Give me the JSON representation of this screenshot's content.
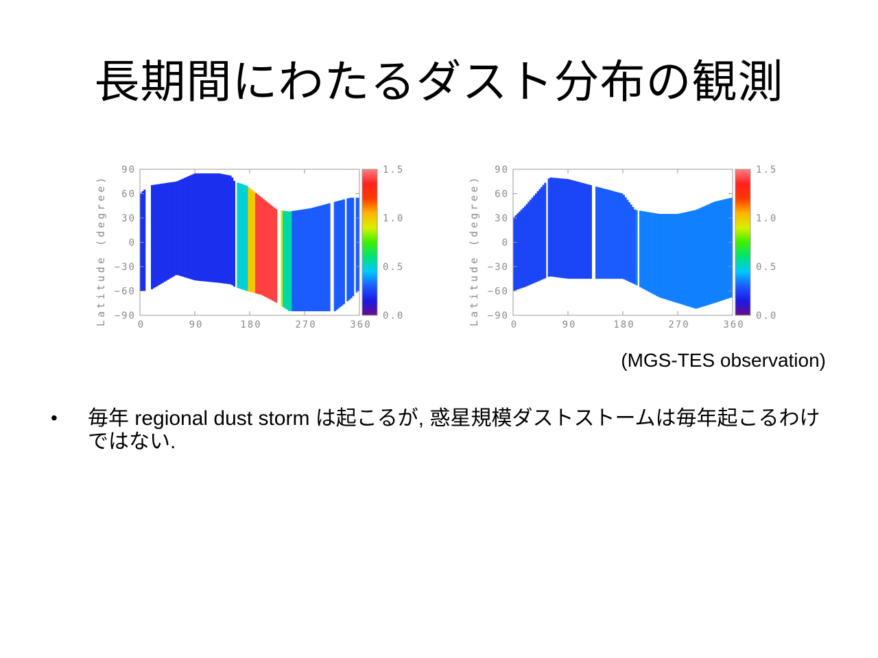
{
  "title": "長期間にわたるダスト分布の観測",
  "caption": "(MGS-TES observation)",
  "bullets": [
    {
      "mark": "•",
      "text": "毎年 regional dust storm は起こるが, 惑星規模ダストストームは毎年起こるわけではない."
    }
  ],
  "colors": {
    "colorbar": [
      "#6a0a8a",
      "#1a1ae6",
      "#1a5cff",
      "#00c8ff",
      "#00e27a",
      "#3cf000",
      "#d8f000",
      "#ffb400",
      "#ff3a00",
      "#ff2020",
      "#ff8080"
    ],
    "axis": "#9a9a9a"
  },
  "chart_data": [
    {
      "type": "heatmap",
      "title": "",
      "xlabel": "",
      "ylabel": "Latitude (degree)",
      "xlim": [
        0,
        360
      ],
      "ylim": [
        -90,
        90
      ],
      "xticks": [
        "0",
        "90",
        "180",
        "270",
        "360"
      ],
      "yticks": [
        "90",
        "60",
        "30",
        "0",
        "−30",
        "−60",
        "−90"
      ],
      "colorbar": {
        "range": [
          0.0,
          1.5
        ],
        "ticks": [
          "1.5",
          "1.0",
          "0.5",
          "0.0"
        ]
      },
      "coverage": [
        [
          0,
          -60,
          60
        ],
        [
          15,
          -60,
          70
        ],
        [
          60,
          -40,
          75
        ],
        [
          90,
          -47,
          85
        ],
        [
          130,
          -50,
          85
        ],
        [
          150,
          -52,
          82
        ],
        [
          155,
          -55,
          75
        ],
        [
          175,
          -60,
          70
        ],
        [
          200,
          -65,
          55
        ],
        [
          225,
          -75,
          40
        ],
        [
          245,
          -85,
          38
        ],
        [
          280,
          -85,
          42
        ],
        [
          320,
          -85,
          50
        ],
        [
          345,
          -70,
          55
        ],
        [
          358,
          -60,
          55
        ]
      ],
      "bands": [
        [
          0,
          160,
          0.2
        ],
        [
          160,
          178,
          0.5
        ],
        [
          178,
          190,
          1.0
        ],
        [
          190,
          225,
          1.4
        ],
        [
          225,
          235,
          0.9
        ],
        [
          235,
          250,
          0.55
        ],
        [
          250,
          360,
          0.3
        ]
      ],
      "gaps": [
        10,
        17,
        155,
        160,
        226,
        232,
        313,
        319,
        335,
        339,
        352,
        355
      ]
    },
    {
      "type": "heatmap",
      "title": "",
      "xlabel": "",
      "ylabel": "Latitude (degree)",
      "xlim": [
        0,
        360
      ],
      "ylim": [
        -90,
        90
      ],
      "xticks": [
        "0",
        "90",
        "180",
        "270",
        "360"
      ],
      "yticks": [
        "90",
        "60",
        "30",
        "0",
        "−30",
        "−60",
        "−90"
      ],
      "colorbar": {
        "range": [
          0.0,
          1.5
        ],
        "ticks": [
          "1.5",
          "1.0",
          "0.5",
          "0.0"
        ]
      },
      "coverage": [
        [
          0,
          -60,
          30
        ],
        [
          20,
          -55,
          45
        ],
        [
          60,
          -42,
          80
        ],
        [
          90,
          -45,
          78
        ],
        [
          130,
          -45,
          70
        ],
        [
          180,
          -45,
          60
        ],
        [
          200,
          -52,
          40
        ],
        [
          240,
          -68,
          35
        ],
        [
          270,
          -75,
          35
        ],
        [
          300,
          -82,
          40
        ],
        [
          330,
          -75,
          50
        ],
        [
          358,
          -68,
          55
        ]
      ],
      "bands": [
        [
          0,
          130,
          0.25
        ],
        [
          130,
          200,
          0.3
        ],
        [
          200,
          360,
          0.35
        ]
      ],
      "gaps": [
        54,
        57,
        130,
        134,
        204,
        208
      ]
    }
  ]
}
